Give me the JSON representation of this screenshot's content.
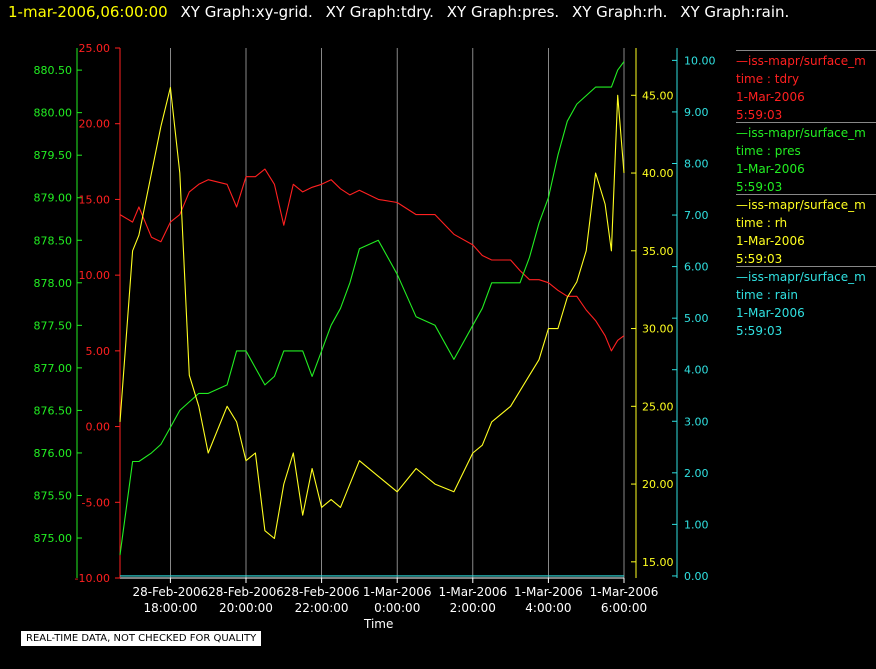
{
  "header": {
    "timestamp": "1-mar-2006,06:00:00",
    "titles": [
      "XY Graph:xy-grid.",
      "XY Graph:tdry.",
      "XY Graph:pres.",
      "XY Graph:rh.",
      "XY Graph:rain."
    ]
  },
  "note": "REAL-TIME DATA, NOT CHECKED FOR QUALITY",
  "colors": {
    "tdry": "#ff2020",
    "pres": "#22ee22",
    "rh": "#ffff20",
    "rain": "#30e0e0",
    "grid": "#ffffff"
  },
  "legend": [
    {
      "name": "iss-mapr/surface_m",
      "var": "time : tdry",
      "date": "1-Mar-2006",
      "time": "5:59:03",
      "color": "#ff2020"
    },
    {
      "name": "iss-mapr/surface_m",
      "var": "time : pres",
      "date": "1-Mar-2006",
      "time": "5:59:03",
      "color": "#22ee22"
    },
    {
      "name": "iss-mapr/surface_m",
      "var": "time : rh",
      "date": "1-Mar-2006",
      "time": "5:59:03",
      "color": "#ffff20"
    },
    {
      "name": "iss-mapr/surface_m",
      "var": "time : rain",
      "date": "1-Mar-2006",
      "time": "5:59:03",
      "color": "#30e0e0"
    }
  ],
  "chart_data": {
    "type": "line",
    "xlabel": "Time",
    "xlim": [
      "28-Feb-2006 16:40",
      "1-Mar-2006 06:00"
    ],
    "x_ticks": [
      {
        "date": "28-Feb-2006",
        "time": "18:00:00"
      },
      {
        "date": "28-Feb-2006",
        "time": "20:00:00"
      },
      {
        "date": "28-Feb-2006",
        "time": "22:00:00"
      },
      {
        "date": "1-Mar-2006",
        "time": "0:00:00"
      },
      {
        "date": "1-Mar-2006",
        "time": "2:00:00"
      },
      {
        "date": "1-Mar-2006",
        "time": "4:00:00"
      },
      {
        "date": "1-Mar-2006",
        "time": "6:00:00"
      }
    ],
    "grid": "vertical",
    "axes": {
      "tdry": {
        "ylim": [
          -10,
          25
        ],
        "ticks": [
          "25.00",
          "20.00",
          "15.00",
          "10.00",
          "5.00",
          "0.00",
          "-5.00",
          "-10.00"
        ]
      },
      "pres": {
        "ylim": [
          874.53,
          880.76
        ],
        "ticks": [
          "880.50",
          "880.00",
          "879.50",
          "879.00",
          "878.50",
          "878.00",
          "877.50",
          "877.00",
          "876.50",
          "876.00",
          "875.50",
          "875.00"
        ]
      },
      "rh": {
        "ylim": [
          13.96,
          48.04
        ],
        "ticks": [
          "45.00",
          "40.00",
          "35.00",
          "30.00",
          "25.00",
          "20.00",
          "15.00"
        ]
      },
      "rain": {
        "ylim": [
          -0.04,
          10.24
        ],
        "ticks": [
          "10.00",
          "9.00",
          "8.00",
          "7.00",
          "6.00",
          "5.00",
          "4.00",
          "3.00",
          "2.00",
          "1.00",
          "0.00"
        ]
      }
    },
    "x_times": [
      "16:40",
      "17:00",
      "17:10",
      "17:30",
      "17:45",
      "18:00",
      "18:15",
      "18:30",
      "18:45",
      "19:00",
      "19:30",
      "19:45",
      "20:00",
      "20:15",
      "20:30",
      "20:45",
      "21:00",
      "21:15",
      "21:30",
      "21:45",
      "22:00",
      "22:15",
      "22:30",
      "22:45",
      "23:00",
      "23:30",
      "0:00",
      "0:30",
      "1:00",
      "1:30",
      "2:00",
      "2:15",
      "2:30",
      "3:00",
      "3:15",
      "3:30",
      "3:45",
      "4:00",
      "4:15",
      "4:30",
      "4:45",
      "5:00",
      "5:15",
      "5:30",
      "5:40",
      "5:50",
      "6:00"
    ],
    "series": [
      {
        "name": "tdry",
        "values": [
          14,
          13.5,
          14.5,
          12.5,
          12.2,
          13.5,
          14,
          15.5,
          16,
          16.3,
          16,
          14.5,
          16.5,
          16.5,
          17,
          16,
          13.3,
          16,
          15.5,
          15.8,
          16,
          16.3,
          15.7,
          15.3,
          15.6,
          15,
          14.8,
          14,
          14,
          12.7,
          12,
          11.3,
          11,
          11,
          10.3,
          9.7,
          9.7,
          9.5,
          9,
          8.6,
          8.6,
          7.7,
          7,
          6,
          5,
          5.7,
          6
        ]
      },
      {
        "name": "pres",
        "values": [
          874.8,
          875.9,
          875.9,
          876,
          876.1,
          876.3,
          876.5,
          876.6,
          876.7,
          876.7,
          876.8,
          877.2,
          877.2,
          877,
          876.8,
          876.9,
          877.2,
          877.2,
          877.2,
          876.9,
          877.2,
          877.5,
          877.7,
          878,
          878.4,
          878.5,
          878.1,
          877.6,
          877.5,
          877.1,
          877.5,
          877.7,
          878,
          878,
          878,
          878.3,
          878.7,
          879,
          879.5,
          879.9,
          880.1,
          880.2,
          880.3,
          880.3,
          880.3,
          880.5,
          880.6
        ]
      },
      {
        "name": "rh",
        "values": [
          24,
          35,
          36,
          40,
          43,
          45.5,
          40,
          27,
          25,
          22,
          25,
          24,
          21.5,
          22,
          17,
          16.5,
          20,
          22,
          18,
          21,
          18.5,
          19,
          18.5,
          20,
          21.5,
          20.5,
          19.5,
          21,
          20,
          19.5,
          22,
          22.5,
          24,
          25,
          26,
          27,
          28,
          30,
          30,
          32,
          33,
          35,
          40,
          38,
          35,
          45,
          40
        ]
      },
      {
        "name": "rain",
        "values": [
          0,
          0,
          0,
          0,
          0,
          0,
          0,
          0,
          0,
          0,
          0,
          0,
          0,
          0,
          0,
          0,
          0,
          0,
          0,
          0,
          0,
          0,
          0,
          0,
          0,
          0,
          0,
          0,
          0,
          0,
          0,
          0,
          0,
          0,
          0,
          0,
          0,
          0,
          0,
          0,
          0,
          0,
          0,
          0,
          0,
          0,
          0
        ]
      }
    ]
  }
}
